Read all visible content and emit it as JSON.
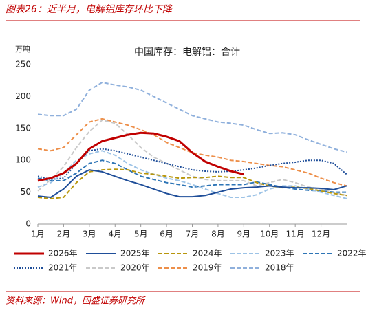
{
  "header": "图表26：近半月，电解铝库存环比下降",
  "source": "资料来源：Wind，国盛证券研究所",
  "chart_data": {
    "type": "line",
    "title": "中国库存：电解铝：合计",
    "y_label": "万吨",
    "x": [
      1,
      1.5,
      2,
      2.5,
      3,
      3.5,
      4,
      4.5,
      5,
      5.5,
      6,
      6.5,
      7,
      7.5,
      8,
      8.5,
      9,
      9.5,
      10,
      10.5,
      11,
      11.5,
      12,
      12.5,
      13
    ],
    "xlim": [
      1,
      13
    ],
    "xticks": [
      {
        "value": 1,
        "label": "1月"
      },
      {
        "value": 2,
        "label": "2月"
      },
      {
        "value": 3,
        "label": "3月"
      },
      {
        "value": 4,
        "label": "4月"
      },
      {
        "value": 5,
        "label": "5月"
      },
      {
        "value": 6,
        "label": "6月"
      },
      {
        "value": 7,
        "label": "7月"
      },
      {
        "value": 8,
        "label": "8月"
      },
      {
        "value": 9,
        "label": "9月"
      },
      {
        "value": 10,
        "label": "10月"
      },
      {
        "value": 11,
        "label": "11月"
      },
      {
        "value": 12,
        "label": "12月"
      }
    ],
    "ylim": [
      0,
      250
    ],
    "yticks": [
      0,
      50,
      100,
      150,
      200,
      250
    ],
    "grid": false,
    "series": [
      {
        "name": "2026年",
        "color": "#c00000",
        "style": "solid",
        "width": 3,
        "values": [
          68,
          72,
          80,
          95,
          118,
          130,
          135,
          140,
          143,
          142,
          137,
          130,
          112,
          98,
          90,
          83,
          78,
          null,
          null,
          null,
          null,
          null,
          null,
          null,
          null
        ]
      },
      {
        "name": "2025年",
        "color": "#1f4e99",
        "style": "solid",
        "width": 2,
        "values": [
          44,
          42,
          55,
          75,
          85,
          82,
          75,
          68,
          62,
          55,
          48,
          43,
          43,
          45,
          50,
          55,
          57,
          58,
          60,
          58,
          57,
          57,
          56,
          54,
          60
        ]
      },
      {
        "name": "2024年",
        "color": "#b8960c",
        "style": "dashed",
        "width": 2,
        "values": [
          42,
          40,
          42,
          65,
          82,
          85,
          86,
          85,
          80,
          78,
          75,
          72,
          73,
          73,
          75,
          73,
          73,
          65,
          60,
          57,
          58,
          56,
          52,
          48,
          45
        ]
      },
      {
        "name": "2023年",
        "color": "#9dc3e6",
        "style": "dashed",
        "width": 2,
        "values": [
          58,
          65,
          80,
          100,
          110,
          115,
          108,
          95,
          85,
          78,
          72,
          68,
          62,
          55,
          48,
          42,
          42,
          46,
          55,
          60,
          60,
          55,
          50,
          45,
          40
        ]
      },
      {
        "name": "2022年",
        "color": "#2e75b6",
        "style": "dashed",
        "width": 2,
        "values": [
          72,
          68,
          68,
          80,
          95,
          100,
          95,
          85,
          75,
          70,
          65,
          62,
          58,
          60,
          62,
          62,
          62,
          66,
          62,
          58,
          55,
          53,
          52,
          50,
          50
        ]
      },
      {
        "name": "2021年",
        "color": "#1f4e99",
        "style": "dotted",
        "width": 2,
        "values": [
          75,
          70,
          72,
          95,
          115,
          118,
          115,
          110,
          105,
          100,
          95,
          90,
          85,
          83,
          82,
          83,
          85,
          88,
          92,
          95,
          97,
          100,
          100,
          95,
          78
        ]
      },
      {
        "name": "2020年",
        "color": "#c9c9c9",
        "style": "dashed",
        "width": 2,
        "values": [
          52,
          70,
          90,
          120,
          145,
          163,
          158,
          140,
          120,
          105,
          95,
          85,
          75,
          70,
          68,
          68,
          68,
          60,
          65,
          70,
          65,
          58,
          55,
          50,
          45
        ]
      },
      {
        "name": "2019年",
        "color": "#ed8f4a",
        "style": "dashed",
        "width": 2,
        "values": [
          118,
          115,
          120,
          140,
          160,
          165,
          160,
          155,
          148,
          140,
          128,
          120,
          112,
          108,
          105,
          100,
          98,
          95,
          92,
          90,
          85,
          80,
          72,
          65,
          60
        ]
      },
      {
        "name": "2018年",
        "color": "#8fb0dc",
        "style": "dashed",
        "width": 2,
        "values": [
          172,
          170,
          170,
          180,
          210,
          222,
          218,
          215,
          210,
          200,
          190,
          180,
          170,
          165,
          160,
          158,
          155,
          148,
          142,
          143,
          140,
          132,
          125,
          118,
          113
        ]
      }
    ]
  }
}
